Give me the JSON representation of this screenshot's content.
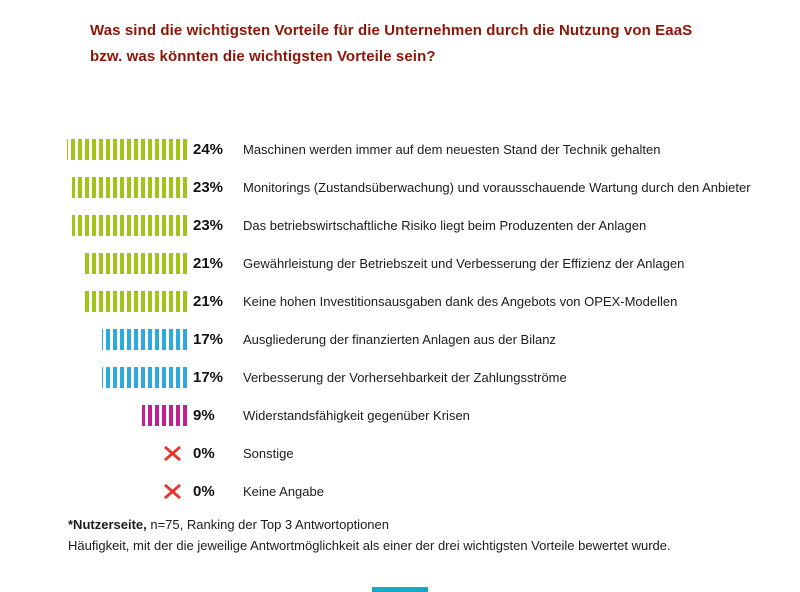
{
  "title": {
    "line1": "Was sind die wichtigsten Vorteile für die Unternehmen durch die Nutzung von EaaS",
    "line2": "bzw. was könnten die wichtigsten Vorteile sein?",
    "color": "#8e1505"
  },
  "chart_data": {
    "type": "bar",
    "orientation": "horizontal",
    "value_unit": "%",
    "xlim": [
      0,
      25
    ],
    "legend": "none",
    "grid": false,
    "colors": {
      "green": "#a1c517",
      "blue": "#2ea9e0",
      "magenta": "#c2208e",
      "red": "#e8332a",
      "accent_strip": "#17a7c9"
    },
    "categories": [
      "Maschinen werden immer auf dem neuesten Stand der Technik gehalten",
      "Monitorings (Zustandsüberwachung) und vorausschauende Wartung durch den Anbieter",
      "Das betriebswirtschaftliche Risiko liegt beim Produzenten der Anlagen",
      "Gewährleistung der Betriebszeit und Verbesserung der Effizienz der Anlagen",
      "Keine hohen Investitionsausgaben dank des Angebots von OPEX-Modellen",
      "Ausgliederung der finanzierten Anlagen aus der Bilanz",
      "Verbesserung der Vorhersehbarkeit der Zahlungsströme",
      "Widerstandsfähigkeit gegenüber Krisen",
      "Sonstige",
      "Keine Angabe"
    ],
    "values": [
      24,
      23,
      23,
      21,
      21,
      17,
      17,
      9,
      0,
      0
    ],
    "rows": [
      {
        "pct": "24%",
        "value": 24,
        "color": "green",
        "label": "Maschinen werden immer auf dem neuesten Stand der Technik gehalten"
      },
      {
        "pct": "23%",
        "value": 23,
        "color": "green",
        "label": "Monitorings (Zustandsüberwachung) und vorausschauende Wartung durch den Anbieter"
      },
      {
        "pct": "23%",
        "value": 23,
        "color": "green",
        "label": "Das betriebswirtschaftliche Risiko liegt beim Produzenten der Anlagen"
      },
      {
        "pct": "21%",
        "value": 21,
        "color": "green",
        "label": "Gewährleistung der Betriebszeit und Verbesserung der Effizienz der Anlagen"
      },
      {
        "pct": "21%",
        "value": 21,
        "color": "green",
        "label": "Keine hohen Investitionsausgaben dank des Angebots von OPEX-Modellen"
      },
      {
        "pct": "17%",
        "value": 17,
        "color": "blue",
        "label": "Ausgliederung der finanzierten Anlagen aus der Bilanz"
      },
      {
        "pct": "17%",
        "value": 17,
        "color": "blue",
        "label": "Verbesserung der Vorhersehbarkeit der Zahlungsströme"
      },
      {
        "pct": "9%",
        "value": 9,
        "color": "magenta",
        "label": "Widerstandsfähigkeit gegenüber Krisen"
      },
      {
        "pct": "0%",
        "value": 0,
        "color": "red",
        "label": "Sonstige"
      },
      {
        "pct": "0%",
        "value": 0,
        "color": "red",
        "label": "Keine Angabe"
      }
    ]
  },
  "footnote": {
    "bold": "*Nutzerseite,",
    "rest": " n=75, Ranking der Top 3 Antwortoptionen",
    "line2": "Häufigkeit, mit der die jeweilige Antwortmöglichkeit als einer der drei wichtigsten Vorteile bewertet wurde."
  }
}
